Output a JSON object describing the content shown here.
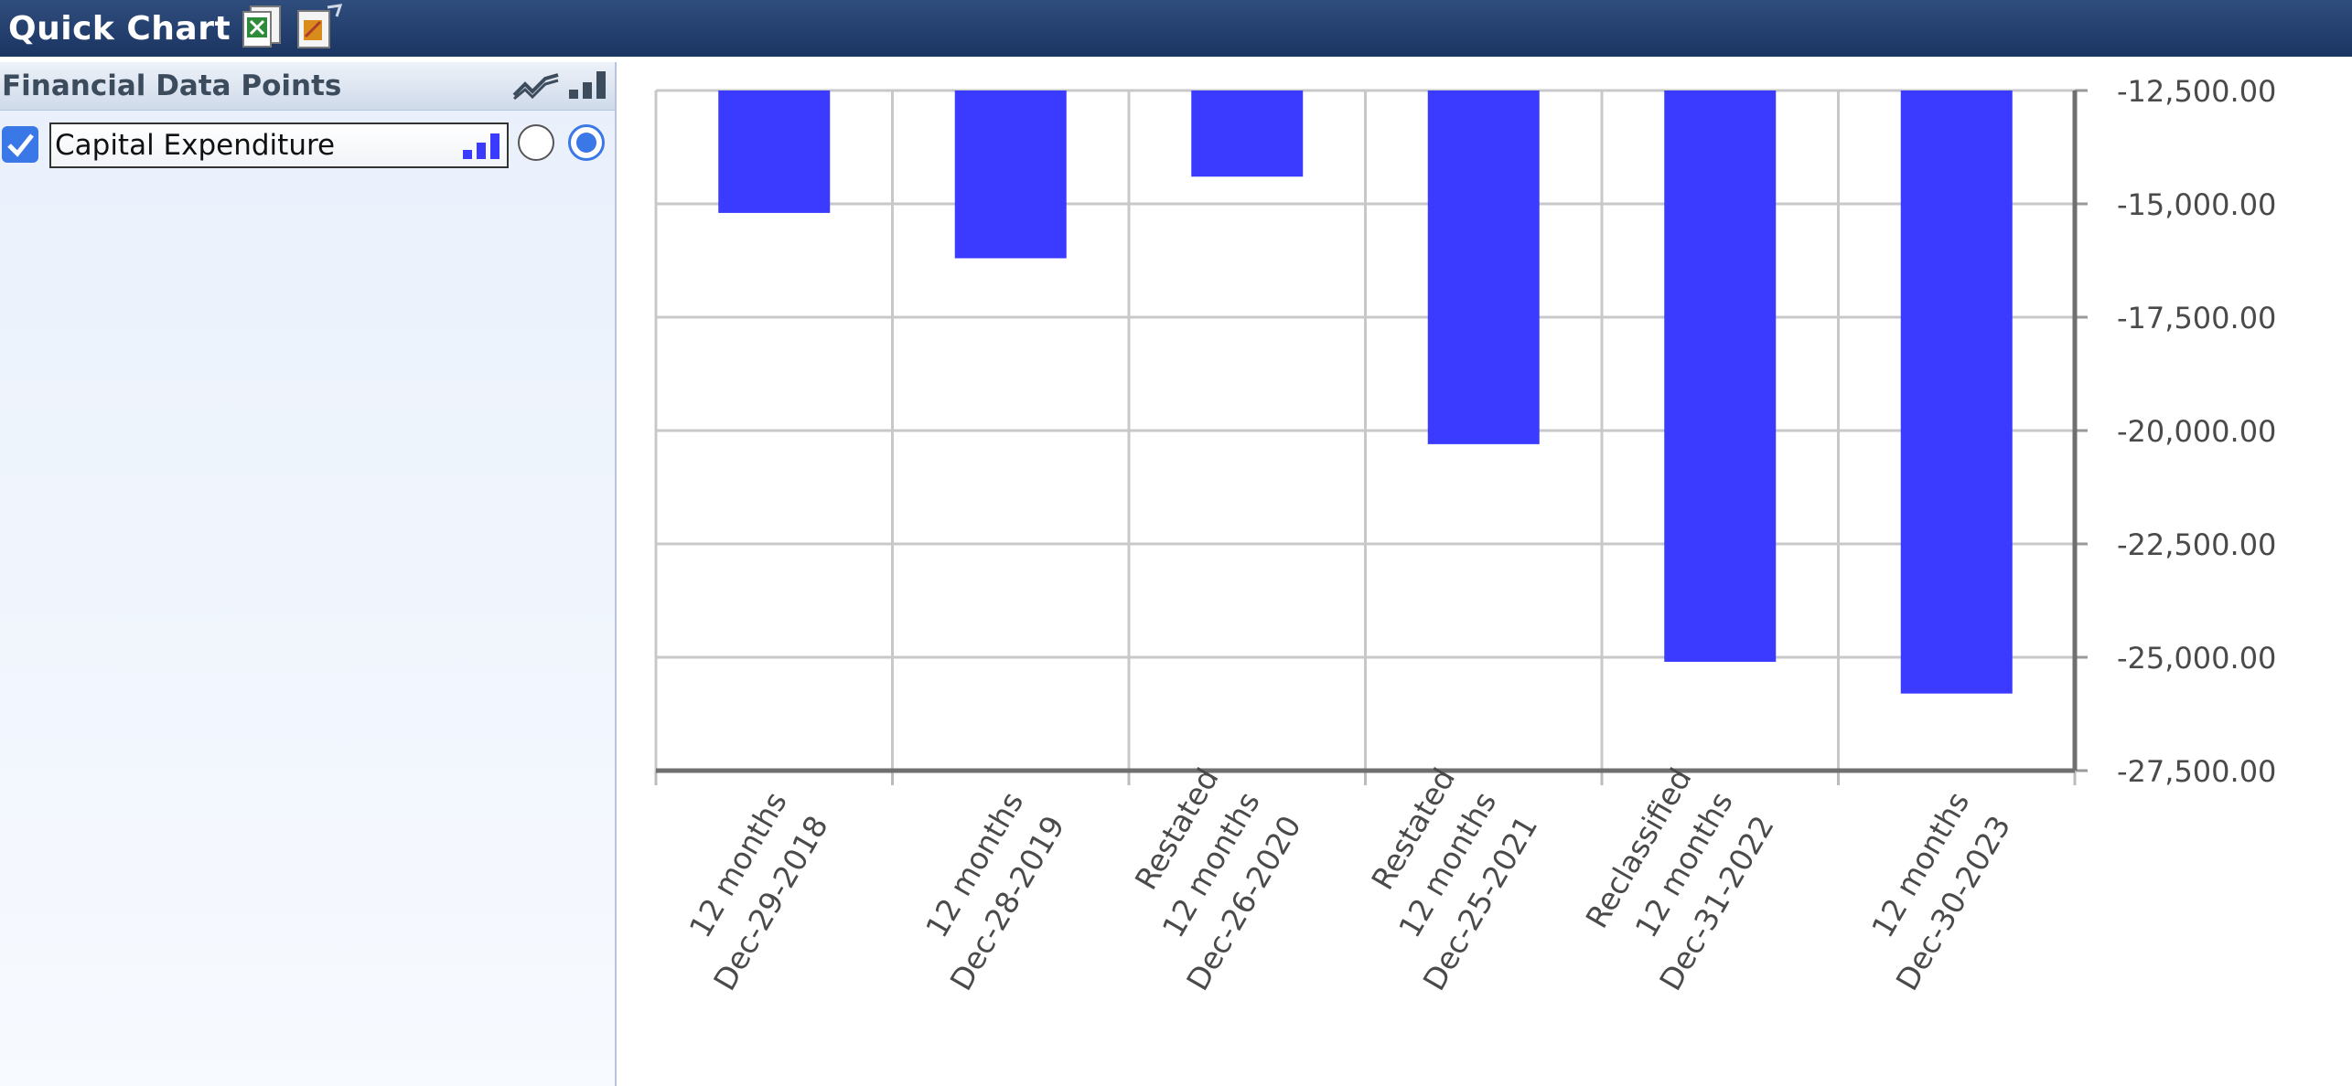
{
  "app": {
    "title": "Quick Chart",
    "export_excel_icon": "excel-export-icon",
    "edit_icon": "edit-chart-icon"
  },
  "sidebar": {
    "header": "Financial Data Points",
    "header_icons": [
      "line-chart-icon",
      "bar-chart-icon"
    ],
    "items": [
      {
        "label": "Capital Expenditure",
        "checked": true,
        "chart_mode": "bar"
      }
    ]
  },
  "colors": {
    "bar": "#3b3bff",
    "titlebar": "#1b3562",
    "accent": "#3b78e7"
  },
  "chart_data": {
    "type": "bar",
    "categories": [
      [
        "12 months",
        "Dec-29-2018"
      ],
      [
        "12 months",
        "Dec-28-2019"
      ],
      [
        "Restated",
        "12 months",
        "Dec-26-2020"
      ],
      [
        "Restated",
        "12 months",
        "Dec-25-2021"
      ],
      [
        "Reclassified",
        "12 months",
        "Dec-31-2022"
      ],
      [
        "12 months",
        "Dec-30-2023"
      ]
    ],
    "series": [
      {
        "name": "Capital Expenditure",
        "values": [
          -15200,
          -16200,
          -14400,
          -20300,
          -25100,
          -25800
        ]
      }
    ],
    "ylim": [
      -27500,
      -12500
    ],
    "yticks": [
      "-12,500.00",
      "-15,000.00",
      "-17,500.00",
      "-20,000.00",
      "-22,500.00",
      "-25,000.00",
      "-27,500.00"
    ],
    "y_axis_position": "right",
    "grid": true
  }
}
